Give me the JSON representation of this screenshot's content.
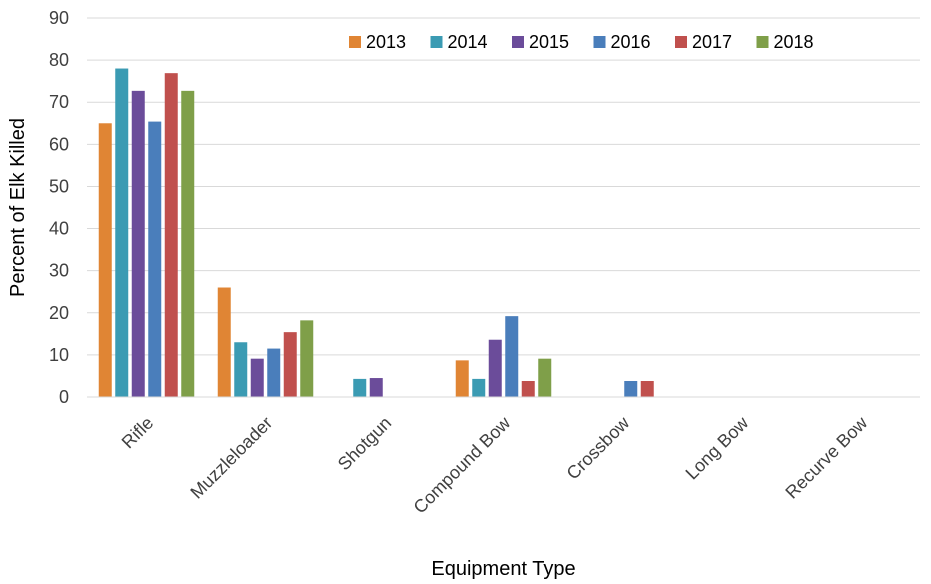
{
  "chart_data": {
    "type": "bar",
    "title": "",
    "xlabel": "Equipment Type",
    "ylabel": "Percent of Elk Killed",
    "ylim": [
      0,
      90
    ],
    "yticks": [
      0,
      10,
      20,
      30,
      40,
      50,
      60,
      70,
      80,
      90
    ],
    "grid": true,
    "legend_position": "top-right",
    "categories": [
      "Rifle",
      "Muzzleloader",
      "Shotgun",
      "Compound Bow",
      "Crossbow",
      "Long Bow",
      "Recurve Bow"
    ],
    "series": [
      {
        "name": "2013",
        "color": "#e08534",
        "values": [
          65,
          26,
          0,
          8.7,
          0,
          0,
          0
        ]
      },
      {
        "name": "2014",
        "color": "#3b9bb3",
        "values": [
          78,
          13,
          4.3,
          4.3,
          0,
          0,
          0
        ]
      },
      {
        "name": "2015",
        "color": "#6b4c9a",
        "values": [
          72.7,
          9.1,
          4.5,
          13.6,
          0,
          0,
          0
        ]
      },
      {
        "name": "2016",
        "color": "#4a7ebb",
        "values": [
          65.4,
          11.5,
          0,
          19.2,
          3.8,
          0,
          0
        ]
      },
      {
        "name": "2017",
        "color": "#c0504d",
        "values": [
          76.9,
          15.4,
          0,
          3.8,
          3.8,
          0,
          0
        ]
      },
      {
        "name": "2018",
        "color": "#7f9f49",
        "values": [
          72.7,
          18.2,
          0,
          9.1,
          0,
          0,
          0
        ]
      }
    ]
  }
}
